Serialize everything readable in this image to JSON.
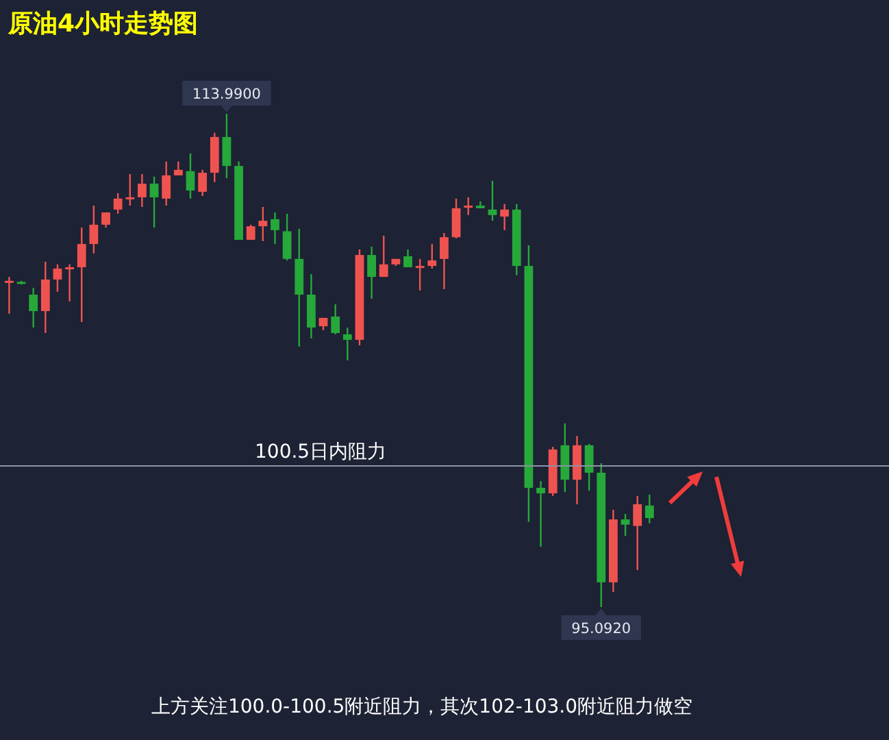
{
  "chart_data": {
    "type": "candlestick",
    "title": "原油4小时走势图",
    "categories": [
      null,
      null,
      null,
      null,
      null,
      null,
      null,
      null,
      null,
      null,
      null,
      null,
      null,
      null,
      null,
      null,
      null,
      null,
      null,
      null,
      null,
      null,
      null,
      null,
      null,
      null,
      null,
      null,
      null,
      null,
      null,
      null,
      null,
      null,
      null,
      null,
      null,
      null,
      null,
      null,
      null,
      null,
      null,
      null,
      null,
      null,
      null,
      null,
      null,
      null,
      null,
      null,
      null,
      null
    ],
    "ohlc": [
      [
        107.53,
        107.74,
        106.33,
        107.59
      ],
      [
        107.55,
        107.59,
        107.45,
        107.47
      ],
      [
        107.06,
        107.32,
        105.8,
        106.43
      ],
      [
        106.43,
        108.32,
        105.59,
        107.64
      ],
      [
        107.64,
        108.22,
        107.17,
        108.06
      ],
      [
        108.06,
        108.22,
        106.8,
        108.11
      ],
      [
        108.11,
        109.63,
        106.01,
        109.0
      ],
      [
        109.0,
        110.47,
        108.64,
        109.74
      ],
      [
        109.74,
        110.21,
        109.63,
        110.21
      ],
      [
        110.32,
        110.95,
        110.16,
        110.74
      ],
      [
        110.74,
        111.68,
        110.47,
        110.79
      ],
      [
        110.79,
        111.68,
        110.42,
        111.31
      ],
      [
        111.31,
        111.58,
        109.63,
        110.79
      ],
      [
        110.74,
        112.16,
        110.47,
        111.63
      ],
      [
        111.63,
        112.16,
        111.63,
        111.84
      ],
      [
        111.79,
        112.47,
        110.74,
        111.05
      ],
      [
        111.0,
        111.84,
        110.84,
        111.73
      ],
      [
        111.73,
        113.26,
        111.37,
        113.1
      ],
      [
        113.1,
        113.99,
        111.52,
        111.99
      ],
      [
        111.99,
        112.16,
        109.16,
        109.16
      ],
      [
        109.16,
        109.74,
        109.16,
        109.68
      ],
      [
        109.68,
        110.42,
        109.11,
        109.89
      ],
      [
        109.95,
        110.21,
        109.0,
        109.53
      ],
      [
        109.49,
        110.16,
        108.37,
        108.43
      ],
      [
        108.43,
        109.58,
        105.07,
        107.06
      ],
      [
        107.06,
        107.85,
        105.38,
        105.8
      ],
      [
        105.85,
        106.17,
        105.7,
        106.17
      ],
      [
        106.22,
        106.69,
        105.54,
        105.59
      ],
      [
        105.54,
        105.8,
        104.54,
        105.33
      ],
      [
        105.33,
        108.79,
        105.12,
        108.58
      ],
      [
        108.58,
        108.9,
        106.9,
        107.74
      ],
      [
        107.74,
        109.32,
        107.74,
        108.22
      ],
      [
        108.22,
        108.43,
        108.16,
        108.43
      ],
      [
        108.53,
        108.79,
        108.11,
        108.11
      ],
      [
        108.11,
        108.43,
        107.22,
        108.16
      ],
      [
        108.16,
        109.0,
        108.06,
        108.37
      ],
      [
        108.43,
        109.42,
        107.27,
        109.26
      ],
      [
        109.26,
        110.74,
        109.21,
        110.37
      ],
      [
        110.42,
        110.79,
        110.11,
        110.47
      ],
      [
        110.47,
        110.63,
        110.37,
        110.37
      ],
      [
        110.32,
        111.42,
        109.89,
        110.11
      ],
      [
        110.05,
        110.53,
        109.53,
        110.32
      ],
      [
        110.32,
        110.53,
        107.8,
        108.16
      ],
      [
        108.16,
        108.95,
        98.35,
        99.66
      ],
      [
        99.66,
        99.92,
        97.4,
        99.45
      ],
      [
        99.45,
        101.23,
        99.35,
        101.13
      ],
      [
        101.29,
        102.13,
        99.5,
        99.97
      ],
      [
        99.97,
        101.65,
        99.03,
        101.29
      ],
      [
        101.29,
        101.34,
        99.55,
        100.24
      ],
      [
        100.24,
        100.6,
        95.092,
        96.04
      ],
      [
        96.04,
        98.82,
        95.67,
        98.45
      ],
      [
        98.45,
        98.66,
        97.82,
        98.25
      ],
      [
        98.2,
        99.35,
        96.51,
        99.03
      ],
      [
        98.98,
        99.4,
        98.3,
        98.5
      ]
    ],
    "colors": [
      "#ef5350",
      "#26a83a",
      "#26a83a",
      "#ef5350",
      "#ef5350",
      "#ef5350",
      "#ef5350",
      "#ef5350",
      "#ef5350",
      "#ef5350",
      "#ef5350",
      "#ef5350",
      "#26a83a",
      "#ef5350",
      "#ef5350",
      "#26a83a",
      "#ef5350",
      "#ef5350",
      "#26a83a",
      "#26a83a",
      "#ef5350",
      "#ef5350",
      "#26a83a",
      "#26a83a",
      "#26a83a",
      "#26a83a",
      "#ef5350",
      "#26a83a",
      "#26a83a",
      "#ef5350",
      "#26a83a",
      "#ef5350",
      "#ef5350",
      "#26a83a",
      "#ef5350",
      "#ef5350",
      "#ef5350",
      "#ef5350",
      "#ef5350",
      "#26a83a",
      "#26a83a",
      "#ef5350",
      "#26a83a",
      "#26a83a",
      "#26a83a",
      "#ef5350",
      "#26a83a",
      "#ef5350",
      "#26a83a",
      "#26a83a",
      "#ef5350",
      "#26a83a",
      "#ef5350",
      "#26a83a"
    ],
    "ref_lines": [
      {
        "axis": "y",
        "value": 100.5,
        "label": "100.5日内阻力",
        "color": "#8c93a6"
      }
    ],
    "annotations": [
      {
        "text": "113.9900",
        "y": 113.99
      },
      {
        "text": "95.0920",
        "y": 95.092
      },
      "上方关注100.0-100.5附近阻力，其次102-103.0附近阻力做空"
    ]
  }
}
